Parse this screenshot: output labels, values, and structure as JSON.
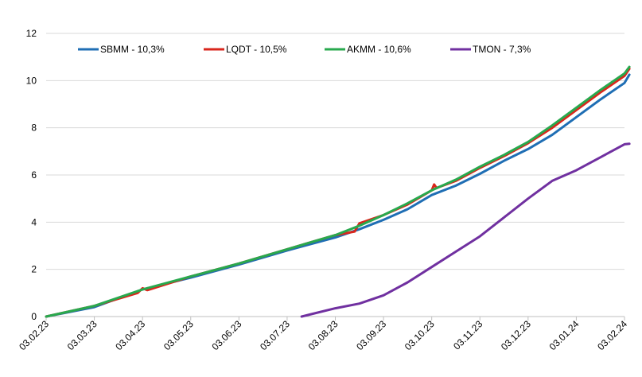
{
  "chart_data": {
    "type": "line",
    "title": "",
    "xlabel": "",
    "ylabel": "",
    "ylim": [
      0,
      12
    ],
    "yticks": [
      "0",
      "2",
      "4",
      "6",
      "8",
      "10",
      "12"
    ],
    "x_ticks": [
      "03.02.23",
      "03.03.23",
      "03.04.23",
      "03.05.23",
      "03.06.23",
      "03.07.23",
      "03.08.23",
      "03.09.23",
      "03.10.23",
      "03.11.23",
      "03.12.23",
      "03.01.24",
      "03.02.24"
    ],
    "grid": "horizontal",
    "legend_position": "top",
    "series": [
      {
        "name": "SBMM - 10,3%",
        "color": "#1f6eb4",
        "points": [
          [
            0,
            0
          ],
          [
            1,
            0.4
          ],
          [
            2,
            1.15
          ],
          [
            3,
            1.65
          ],
          [
            4,
            2.2
          ],
          [
            5,
            2.8
          ],
          [
            6,
            3.35
          ],
          [
            6.5,
            3.7
          ],
          [
            7,
            4.1
          ],
          [
            7.5,
            4.55
          ],
          [
            8,
            5.15
          ],
          [
            8.5,
            5.55
          ],
          [
            9,
            6.05
          ],
          [
            9.5,
            6.6
          ],
          [
            10,
            7.1
          ],
          [
            10.5,
            7.7
          ],
          [
            11,
            8.45
          ],
          [
            11.5,
            9.2
          ],
          [
            12,
            9.9
          ],
          [
            12.1,
            10.25
          ]
        ]
      },
      {
        "name": "LQDT - 10,5%",
        "color": "#d9261c",
        "points": [
          [
            0,
            0
          ],
          [
            1,
            0.45
          ],
          [
            1.9,
            1.0
          ],
          [
            2,
            1.2
          ],
          [
            2.1,
            1.12
          ],
          [
            3,
            1.7
          ],
          [
            4,
            2.25
          ],
          [
            5,
            2.85
          ],
          [
            6,
            3.45
          ],
          [
            6.4,
            3.6
          ],
          [
            6.5,
            3.95
          ],
          [
            7,
            4.3
          ],
          [
            7.5,
            4.75
          ],
          [
            8,
            5.35
          ],
          [
            8.05,
            5.6
          ],
          [
            8.1,
            5.45
          ],
          [
            8.5,
            5.75
          ],
          [
            9,
            6.3
          ],
          [
            9.5,
            6.8
          ],
          [
            10,
            7.35
          ],
          [
            10.5,
            8.0
          ],
          [
            11,
            8.75
          ],
          [
            11.5,
            9.5
          ],
          [
            12,
            10.2
          ],
          [
            12.1,
            10.5
          ]
        ]
      },
      {
        "name": "AKMM - 10,6%",
        "color": "#28a94e",
        "points": [
          [
            0,
            0
          ],
          [
            1,
            0.45
          ],
          [
            2,
            1.15
          ],
          [
            3,
            1.7
          ],
          [
            4,
            2.25
          ],
          [
            5,
            2.85
          ],
          [
            6,
            3.45
          ],
          [
            6.5,
            3.85
          ],
          [
            7,
            4.3
          ],
          [
            7.5,
            4.8
          ],
          [
            8,
            5.35
          ],
          [
            8.5,
            5.8
          ],
          [
            9,
            6.35
          ],
          [
            9.5,
            6.85
          ],
          [
            10,
            7.4
          ],
          [
            10.5,
            8.1
          ],
          [
            11,
            8.85
          ],
          [
            11.5,
            9.6
          ],
          [
            12,
            10.3
          ],
          [
            12.1,
            10.58
          ]
        ]
      },
      {
        "name": "TMON - 7,3%",
        "color": "#7030a0",
        "points": [
          [
            5.3,
            0
          ],
          [
            5.5,
            0.1
          ],
          [
            6,
            0.35
          ],
          [
            6.5,
            0.55
          ],
          [
            7,
            0.9
          ],
          [
            7.5,
            1.45
          ],
          [
            8,
            2.1
          ],
          [
            8.5,
            2.75
          ],
          [
            9,
            3.4
          ],
          [
            9.5,
            4.2
          ],
          [
            10,
            5.0
          ],
          [
            10.5,
            5.75
          ],
          [
            11,
            6.2
          ],
          [
            11.5,
            6.75
          ],
          [
            12,
            7.3
          ],
          [
            12.1,
            7.32
          ]
        ]
      }
    ]
  }
}
